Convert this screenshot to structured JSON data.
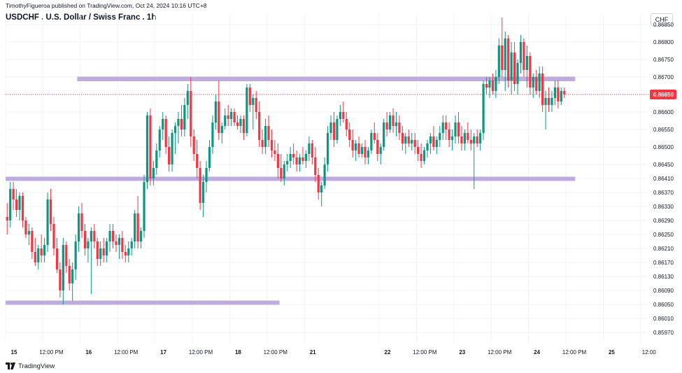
{
  "header": {
    "attribution": "TimothyFigueroa published on TradingView.com, Oct 24, 2024 10:16 UTC+8",
    "title": "USDCHF . U.S. Dollar / Swiss Franc . 1h",
    "currency": "CHF"
  },
  "footer": {
    "brand": "TradingView",
    "brand_icon": "tradingview-logo-icon"
  },
  "colors": {
    "up": "#089981",
    "down": "#f23645",
    "zone": "#b39ddb",
    "price_line": "#f23645",
    "grid": "#f0f3fa"
  },
  "chart_data": {
    "type": "candlestick",
    "symbol": "USDCHF",
    "interval": "1h",
    "ylim": [
      0.8594,
      0.8688
    ],
    "y_ticks": [
      0.8685,
      0.868,
      0.8675,
      0.867,
      0.8665,
      0.866,
      0.8655,
      0.865,
      0.8645,
      0.8641,
      0.8637,
      0.8633,
      0.8629,
      0.8625,
      0.8621,
      0.8617,
      0.8613,
      0.8609,
      0.8605,
      0.8601,
      0.8597
    ],
    "y_tick_labels": [
      "0.86850",
      "0.86800",
      "0.86750",
      "0.86700",
      "0.86650",
      "0.86600",
      "0.86550",
      "0.86500",
      "0.86450",
      "0.86410",
      "0.86370",
      "0.86330",
      "0.86290",
      "0.86250",
      "0.86210",
      "0.86170",
      "0.86130",
      "0.86090",
      "0.86050",
      "0.86010",
      "0.85970"
    ],
    "last_price": 0.8665,
    "last_price_label": "0.86650",
    "x_ticks": [
      {
        "label": "15",
        "at": 0
      },
      {
        "label": "12:00 PM",
        "at": 12
      },
      {
        "label": "16",
        "at": 24
      },
      {
        "label": "12:00 PM",
        "at": 36
      },
      {
        "label": "17",
        "at": 48
      },
      {
        "label": "12:00 PM",
        "at": 60
      },
      {
        "label": "18",
        "at": 72
      },
      {
        "label": "12:00 PM",
        "at": 84
      },
      {
        "label": "21",
        "at": 96
      },
      {
        "label": "22",
        "at": 120
      },
      {
        "label": "12:00 PM",
        "at": 132
      },
      {
        "label": "23",
        "at": 144
      },
      {
        "label": "12:00 PM",
        "at": 156
      },
      {
        "label": "24",
        "at": 168
      },
      {
        "label": "12:00 PM",
        "at": 180
      },
      {
        "label": "25",
        "at": 192
      },
      {
        "label": "12:00",
        "at": 204
      }
    ],
    "zones": [
      {
        "from": 0.86688,
        "to": 0.86701,
        "x_start": 23,
        "x_end": 183
      },
      {
        "from": 0.86406,
        "to": 0.86415,
        "x_start": 0,
        "x_end": 183
      },
      {
        "from": 0.86051,
        "to": 0.86061,
        "x_start": 0,
        "x_end": 88
      }
    ],
    "candles": [
      [
        0.863,
        0.8634,
        0.8625,
        0.8629
      ],
      [
        0.8629,
        0.864,
        0.8627,
        0.8638
      ],
      [
        0.8638,
        0.864,
        0.8632,
        0.8635
      ],
      [
        0.8635,
        0.8638,
        0.863,
        0.8632
      ],
      [
        0.8632,
        0.8637,
        0.8629,
        0.8636
      ],
      [
        0.8636,
        0.8637,
        0.8627,
        0.8629
      ],
      [
        0.8629,
        0.863,
        0.8624,
        0.8625
      ],
      [
        0.8625,
        0.8628,
        0.8622,
        0.8626
      ],
      [
        0.8626,
        0.8627,
        0.8618,
        0.862
      ],
      [
        0.862,
        0.8624,
        0.8616,
        0.8617
      ],
      [
        0.8617,
        0.8622,
        0.8615,
        0.8621
      ],
      [
        0.8621,
        0.8625,
        0.8617,
        0.8619
      ],
      [
        0.8619,
        0.8624,
        0.8617,
        0.8622
      ],
      [
        0.8622,
        0.8637,
        0.862,
        0.8635
      ],
      [
        0.8635,
        0.8638,
        0.8626,
        0.8628
      ],
      [
        0.8628,
        0.863,
        0.8619,
        0.8621
      ],
      [
        0.8621,
        0.8624,
        0.8614,
        0.8615
      ],
      [
        0.8615,
        0.8617,
        0.8607,
        0.8609
      ],
      [
        0.8609,
        0.8624,
        0.8605,
        0.8622
      ],
      [
        0.8622,
        0.8623,
        0.8614,
        0.8616
      ],
      [
        0.8616,
        0.8618,
        0.8609,
        0.8611
      ],
      [
        0.8611,
        0.8617,
        0.8606,
        0.8615
      ],
      [
        0.8615,
        0.8625,
        0.8612,
        0.8623
      ],
      [
        0.8623,
        0.8633,
        0.862,
        0.8631
      ],
      [
        0.8631,
        0.8634,
        0.8624,
        0.8626
      ],
      [
        0.8626,
        0.8628,
        0.8619,
        0.8621
      ],
      [
        0.8621,
        0.8624,
        0.8617,
        0.8623
      ],
      [
        0.8623,
        0.8627,
        0.8608,
        0.8626
      ],
      [
        0.8626,
        0.8628,
        0.8621,
        0.8623
      ],
      [
        0.8623,
        0.8624,
        0.8616,
        0.8618
      ],
      [
        0.8618,
        0.8623,
        0.8616,
        0.8621
      ],
      [
        0.8621,
        0.8624,
        0.8617,
        0.8619
      ],
      [
        0.8619,
        0.8624,
        0.8617,
        0.8623
      ],
      [
        0.8623,
        0.8628,
        0.862,
        0.8626
      ],
      [
        0.8626,
        0.8628,
        0.8621,
        0.8623
      ],
      [
        0.8623,
        0.8625,
        0.862,
        0.8622
      ],
      [
        0.8622,
        0.8625,
        0.8618,
        0.8624
      ],
      [
        0.8624,
        0.8626,
        0.8618,
        0.862
      ],
      [
        0.862,
        0.8622,
        0.8617,
        0.8619
      ],
      [
        0.8619,
        0.8623,
        0.8617,
        0.8621
      ],
      [
        0.8621,
        0.8624,
        0.8619,
        0.8623
      ],
      [
        0.8623,
        0.8632,
        0.8621,
        0.8631
      ],
      [
        0.8631,
        0.8636,
        0.8621,
        0.8623
      ],
      [
        0.8623,
        0.8627,
        0.8621,
        0.8626
      ],
      [
        0.8626,
        0.8642,
        0.8624,
        0.864
      ],
      [
        0.864,
        0.866,
        0.8638,
        0.8659
      ],
      [
        0.8659,
        0.8661,
        0.8639,
        0.8641
      ],
      [
        0.8641,
        0.8646,
        0.8639,
        0.8644
      ],
      [
        0.8644,
        0.8651,
        0.8642,
        0.8649
      ],
      [
        0.8649,
        0.8656,
        0.8647,
        0.8655
      ],
      [
        0.8655,
        0.866,
        0.8652,
        0.8658
      ],
      [
        0.8658,
        0.8659,
        0.8648,
        0.865
      ],
      [
        0.865,
        0.8653,
        0.8643,
        0.8645
      ],
      [
        0.8645,
        0.8655,
        0.8643,
        0.8654
      ],
      [
        0.8654,
        0.8657,
        0.8648,
        0.8656
      ],
      [
        0.8656,
        0.866,
        0.8651,
        0.8658
      ],
      [
        0.8658,
        0.8662,
        0.8653,
        0.8655
      ],
      [
        0.8655,
        0.8664,
        0.8653,
        0.8662
      ],
      [
        0.8662,
        0.8668,
        0.8658,
        0.8666
      ],
      [
        0.8666,
        0.867,
        0.865,
        0.8653
      ],
      [
        0.8653,
        0.8655,
        0.8646,
        0.8648
      ],
      [
        0.8648,
        0.8652,
        0.8641,
        0.8644
      ],
      [
        0.8644,
        0.8646,
        0.8632,
        0.8634
      ],
      [
        0.8634,
        0.8642,
        0.863,
        0.864
      ],
      [
        0.864,
        0.8646,
        0.8637,
        0.8644
      ],
      [
        0.8644,
        0.8652,
        0.8643,
        0.865
      ],
      [
        0.865,
        0.8659,
        0.8648,
        0.8657
      ],
      [
        0.8657,
        0.8665,
        0.8655,
        0.8663
      ],
      [
        0.8663,
        0.8669,
        0.8652,
        0.8654
      ],
      [
        0.8654,
        0.8657,
        0.8651,
        0.8656
      ],
      [
        0.8656,
        0.8661,
        0.8655,
        0.8659
      ],
      [
        0.8659,
        0.8662,
        0.8656,
        0.8658
      ],
      [
        0.8658,
        0.8661,
        0.8656,
        0.866
      ],
      [
        0.866,
        0.8661,
        0.8656,
        0.8657
      ],
      [
        0.8657,
        0.8659,
        0.8655,
        0.8656
      ],
      [
        0.8656,
        0.8659,
        0.8654,
        0.8658
      ],
      [
        0.8658,
        0.8659,
        0.8652,
        0.8654
      ],
      [
        0.8654,
        0.8668,
        0.8653,
        0.8667
      ],
      [
        0.8667,
        0.8668,
        0.866,
        0.8662
      ],
      [
        0.8662,
        0.8665,
        0.8655,
        0.8664
      ],
      [
        0.8664,
        0.8666,
        0.8658,
        0.866
      ],
      [
        0.866,
        0.8663,
        0.865,
        0.8652
      ],
      [
        0.8652,
        0.8655,
        0.8648,
        0.865
      ],
      [
        0.865,
        0.8658,
        0.8648,
        0.8656
      ],
      [
        0.8656,
        0.8659,
        0.865,
        0.8652
      ],
      [
        0.8652,
        0.8655,
        0.8647,
        0.8649
      ],
      [
        0.8649,
        0.8652,
        0.8646,
        0.8648
      ],
      [
        0.8648,
        0.8651,
        0.8641,
        0.8644
      ],
      [
        0.8644,
        0.8648,
        0.864,
        0.8641
      ],
      [
        0.8641,
        0.8646,
        0.8639,
        0.8645
      ],
      [
        0.8645,
        0.8648,
        0.8643,
        0.8646
      ],
      [
        0.8646,
        0.865,
        0.8644,
        0.8648
      ],
      [
        0.8648,
        0.8651,
        0.8645,
        0.8647
      ],
      [
        0.8647,
        0.8649,
        0.8643,
        0.8645
      ],
      [
        0.8645,
        0.8648,
        0.8643,
        0.8647
      ],
      [
        0.8647,
        0.865,
        0.8645,
        0.8646
      ],
      [
        0.8646,
        0.8649,
        0.8644,
        0.8648
      ],
      [
        0.8648,
        0.8653,
        0.8646,
        0.8651
      ],
      [
        0.8651,
        0.8652,
        0.8645,
        0.8647
      ],
      [
        0.8647,
        0.865,
        0.864,
        0.8642
      ],
      [
        0.8642,
        0.8644,
        0.8635,
        0.8637
      ],
      [
        0.8637,
        0.864,
        0.8633,
        0.8639
      ],
      [
        0.8639,
        0.8647,
        0.8638,
        0.8645
      ],
      [
        0.8645,
        0.8656,
        0.8643,
        0.8654
      ],
      [
        0.8654,
        0.8659,
        0.8652,
        0.8657
      ],
      [
        0.8657,
        0.866,
        0.865,
        0.8652
      ],
      [
        0.8652,
        0.8659,
        0.8651,
        0.8658
      ],
      [
        0.8658,
        0.8662,
        0.8656,
        0.866
      ],
      [
        0.866,
        0.8663,
        0.8657,
        0.8658
      ],
      [
        0.8658,
        0.866,
        0.8653,
        0.8655
      ],
      [
        0.8655,
        0.8657,
        0.865,
        0.8652
      ],
      [
        0.8652,
        0.8655,
        0.8647,
        0.8649
      ],
      [
        0.8649,
        0.8652,
        0.8646,
        0.8651
      ],
      [
        0.8651,
        0.8653,
        0.8647,
        0.8648
      ],
      [
        0.8648,
        0.8651,
        0.8647,
        0.865
      ],
      [
        0.865,
        0.8652,
        0.8645,
        0.8647
      ],
      [
        0.8647,
        0.865,
        0.8645,
        0.8649
      ],
      [
        0.8649,
        0.8655,
        0.8648,
        0.8654
      ],
      [
        0.8654,
        0.8657,
        0.8651,
        0.8652
      ],
      [
        0.8652,
        0.8654,
        0.8646,
        0.8648
      ],
      [
        0.8648,
        0.8651,
        0.8645,
        0.865
      ],
      [
        0.865,
        0.8658,
        0.8649,
        0.8657
      ],
      [
        0.8657,
        0.866,
        0.8653,
        0.8655
      ],
      [
        0.8655,
        0.866,
        0.8654,
        0.8659
      ],
      [
        0.8659,
        0.8661,
        0.8654,
        0.8656
      ],
      [
        0.8656,
        0.866,
        0.8653,
        0.8657
      ],
      [
        0.8657,
        0.8659,
        0.8652,
        0.8654
      ],
      [
        0.8654,
        0.8656,
        0.8649,
        0.8651
      ],
      [
        0.8651,
        0.8654,
        0.8648,
        0.8653
      ],
      [
        0.8653,
        0.8655,
        0.865,
        0.8651
      ],
      [
        0.8651,
        0.8654,
        0.8649,
        0.8652
      ],
      [
        0.8652,
        0.8654,
        0.8648,
        0.865
      ],
      [
        0.865,
        0.8652,
        0.8646,
        0.8648
      ],
      [
        0.8648,
        0.8651,
        0.8644,
        0.8646
      ],
      [
        0.8646,
        0.865,
        0.8645,
        0.8649
      ],
      [
        0.8649,
        0.8652,
        0.8647,
        0.8651
      ],
      [
        0.8651,
        0.8654,
        0.8648,
        0.8653
      ],
      [
        0.8653,
        0.8656,
        0.8649,
        0.865
      ],
      [
        0.865,
        0.8653,
        0.8648,
        0.8652
      ],
      [
        0.8652,
        0.8656,
        0.865,
        0.8654
      ],
      [
        0.8654,
        0.8659,
        0.8652,
        0.8657
      ],
      [
        0.8657,
        0.8659,
        0.8652,
        0.8655
      ],
      [
        0.8655,
        0.8657,
        0.865,
        0.8652
      ],
      [
        0.8652,
        0.8655,
        0.8649,
        0.8653
      ],
      [
        0.8653,
        0.8659,
        0.8651,
        0.8657
      ],
      [
        0.8657,
        0.866,
        0.8651,
        0.8653
      ],
      [
        0.8653,
        0.8656,
        0.8649,
        0.8651
      ],
      [
        0.8651,
        0.8655,
        0.8649,
        0.8654
      ],
      [
        0.8654,
        0.8657,
        0.8651,
        0.8652
      ],
      [
        0.8652,
        0.8655,
        0.8649,
        0.8651
      ],
      [
        0.8651,
        0.8654,
        0.8638,
        0.8653
      ],
      [
        0.8653,
        0.8655,
        0.865,
        0.8651
      ],
      [
        0.8651,
        0.8655,
        0.8649,
        0.8654
      ],
      [
        0.8654,
        0.8669,
        0.8652,
        0.8668
      ],
      [
        0.8668,
        0.867,
        0.8665,
        0.8667
      ],
      [
        0.8667,
        0.867,
        0.8664,
        0.8669
      ],
      [
        0.8669,
        0.8671,
        0.8665,
        0.8666
      ],
      [
        0.8666,
        0.8672,
        0.8664,
        0.867
      ],
      [
        0.867,
        0.8681,
        0.8668,
        0.8679
      ],
      [
        0.8679,
        0.8687,
        0.867,
        0.8672
      ],
      [
        0.8672,
        0.8683,
        0.8666,
        0.8681
      ],
      [
        0.8681,
        0.8682,
        0.8667,
        0.8669
      ],
      [
        0.8669,
        0.868,
        0.8665,
        0.8677
      ],
      [
        0.8677,
        0.868,
        0.8666,
        0.8668
      ],
      [
        0.8668,
        0.8675,
        0.8665,
        0.8674
      ],
      [
        0.8674,
        0.8682,
        0.8671,
        0.868
      ],
      [
        0.868,
        0.8681,
        0.867,
        0.8672
      ],
      [
        0.8672,
        0.8679,
        0.8667,
        0.8676
      ],
      [
        0.8676,
        0.8677,
        0.8665,
        0.8667
      ],
      [
        0.8667,
        0.8671,
        0.8664,
        0.867
      ],
      [
        0.867,
        0.8672,
        0.8665,
        0.8666
      ],
      [
        0.8666,
        0.8673,
        0.8664,
        0.8671
      ],
      [
        0.8671,
        0.8673,
        0.866,
        0.8662
      ],
      [
        0.8662,
        0.8666,
        0.8655,
        0.8664
      ],
      [
        0.8664,
        0.8667,
        0.866,
        0.8662
      ],
      [
        0.8662,
        0.8666,
        0.866,
        0.8664
      ],
      [
        0.8664,
        0.8669,
        0.8662,
        0.8667
      ],
      [
        0.8667,
        0.8669,
        0.8661,
        0.8663
      ],
      [
        0.8663,
        0.8667,
        0.8662,
        0.8666
      ],
      [
        0.8666,
        0.8667,
        0.8664,
        0.8665
      ]
    ]
  }
}
